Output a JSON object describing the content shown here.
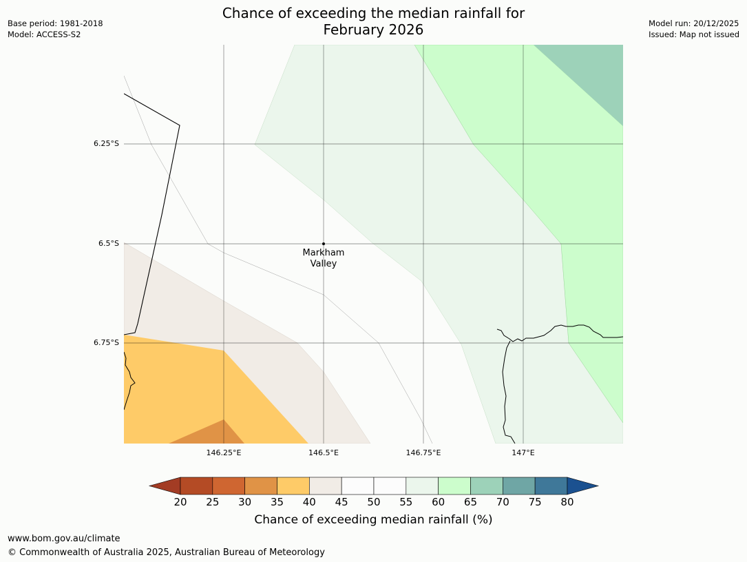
{
  "title": {
    "line1": "Chance of exceeding the median rainfall for",
    "line2": "February 2026"
  },
  "meta_left": {
    "base_period": "Base period: 1981-2018",
    "model": "Model: ACCESS-S2"
  },
  "meta_right": {
    "model_run": "Model run: 20/12/2025",
    "issued": "Issued: Map not issued"
  },
  "map": {
    "lat_labels": [
      "6.25°S",
      "6.5°S",
      "6.75°S"
    ],
    "lon_labels": [
      "146.25°E",
      "146.5°E",
      "146.75°E",
      "147°E"
    ],
    "place": {
      "line1": "Markham",
      "line2": "Valley"
    }
  },
  "colorbar": {
    "tick_labels": [
      "20",
      "25",
      "30",
      "35",
      "40",
      "45",
      "50",
      "55",
      "60",
      "65",
      "70",
      "75",
      "80"
    ],
    "colors": [
      "#a33c24",
      "#b44b25",
      "#cf6631",
      "#e09346",
      "#fecb68",
      "#f1ece6",
      "#fcfcfc",
      "#fcfcfc",
      "#ebf6ec",
      "#ccfdcc",
      "#9dd2b9",
      "#6fa6a5",
      "#3f7899",
      "#1b5190"
    ],
    "title": "Chance of exceeding median rainfall (%)"
  },
  "footer": {
    "url": "www.bom.gov.au/climate",
    "copyright": "© Commonwealth of Australia 2025, Australian Bureau of Meteorology"
  }
}
